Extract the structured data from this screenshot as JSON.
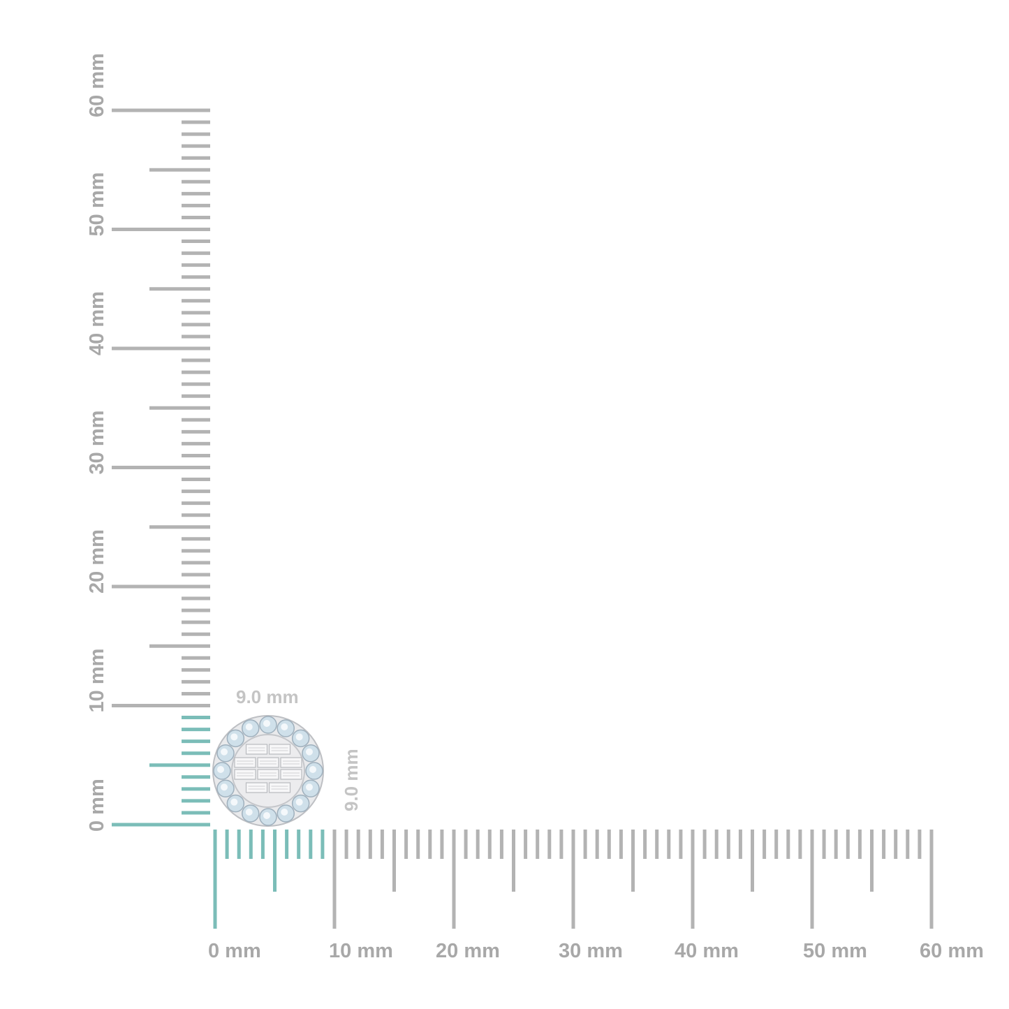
{
  "colors": {
    "ruler": "#b3b3b3",
    "highlight": "#7bbdb8",
    "label": "#a8a8a8",
    "dimension_label": "#c4c4c4"
  },
  "horizontal_ruler": {
    "range_mm": [
      0,
      60
    ],
    "highlight_mm": [
      0,
      9
    ],
    "labels": [
      "0 mm",
      "10 mm",
      "20 mm",
      "30 mm",
      "40 mm",
      "50 mm",
      "60 mm"
    ]
  },
  "vertical_ruler": {
    "range_mm": [
      0,
      60
    ],
    "highlight_mm": [
      0,
      9
    ],
    "labels": [
      "0 mm",
      "10 mm",
      "20 mm",
      "30 mm",
      "40 mm",
      "50 mm",
      "60 mm"
    ]
  },
  "product": {
    "width_label": "9.0 mm",
    "height_label": "9.0 mm",
    "icon": "round-halo-baguette-diamond-earring"
  }
}
